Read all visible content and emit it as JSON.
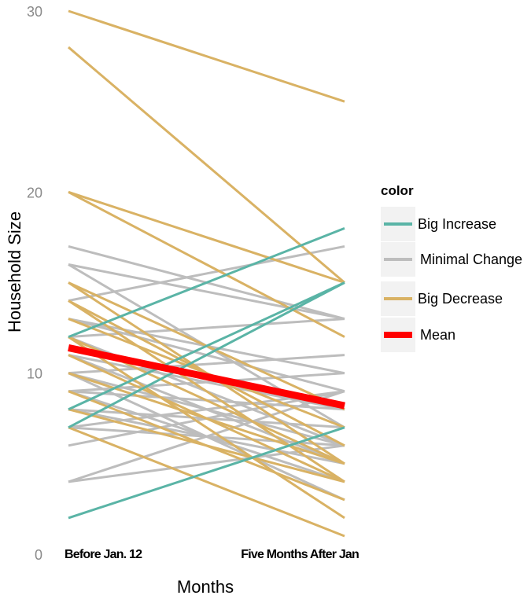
{
  "chart_data": {
    "type": "line",
    "title": "",
    "xlabel": "Months",
    "ylabel": "Household Size",
    "categories": [
      "Before Jan. 12",
      "Five Months After  Jan"
    ],
    "ylim": [
      0,
      30
    ],
    "yticks": [
      0,
      10,
      20,
      30
    ],
    "grid": false,
    "legend": {
      "title": "color",
      "position": "right",
      "entries": [
        {
          "label": "Big Increase",
          "color": "#5ab4a6"
        },
        {
          "label": "Minimal Change",
          "color": "#bdbdbd"
        },
        {
          "label": "Big Decrease",
          "color": "#d9b264"
        },
        {
          "label": "Mean",
          "color": "#ff0000"
        }
      ]
    },
    "series": [
      {
        "group": "Big Decrease",
        "values": [
          30,
          25
        ]
      },
      {
        "group": "Big Decrease",
        "values": [
          28,
          15
        ]
      },
      {
        "group": "Big Decrease",
        "values": [
          20,
          15
        ]
      },
      {
        "group": "Big Decrease",
        "values": [
          20,
          12
        ]
      },
      {
        "group": "Big Decrease",
        "values": [
          15,
          8
        ]
      },
      {
        "group": "Big Decrease",
        "values": [
          15,
          5
        ]
      },
      {
        "group": "Big Decrease",
        "values": [
          14,
          6
        ]
      },
      {
        "group": "Big Decrease",
        "values": [
          14,
          4
        ]
      },
      {
        "group": "Big Decrease",
        "values": [
          13,
          7
        ]
      },
      {
        "group": "Big Decrease",
        "values": [
          12,
          5
        ]
      },
      {
        "group": "Big Decrease",
        "values": [
          12,
          2
        ]
      },
      {
        "group": "Big Decrease",
        "values": [
          11,
          4
        ]
      },
      {
        "group": "Big Decrease",
        "values": [
          10,
          5
        ]
      },
      {
        "group": "Big Decrease",
        "values": [
          9,
          3
        ]
      },
      {
        "group": "Big Decrease",
        "values": [
          7,
          1
        ]
      },
      {
        "group": "Big Decrease",
        "values": [
          8,
          4
        ]
      },
      {
        "group": "Big Increase",
        "values": [
          12,
          18
        ]
      },
      {
        "group": "Big Increase",
        "values": [
          8,
          15
        ]
      },
      {
        "group": "Big Increase",
        "values": [
          7,
          15
        ]
      },
      {
        "group": "Big Increase",
        "values": [
          2,
          7
        ]
      },
      {
        "group": "Minimal Change",
        "values": [
          17,
          13
        ]
      },
      {
        "group": "Minimal Change",
        "values": [
          16,
          13
        ]
      },
      {
        "group": "Minimal Change",
        "values": [
          16,
          7
        ]
      },
      {
        "group": "Minimal Change",
        "values": [
          14,
          17
        ]
      },
      {
        "group": "Minimal Change",
        "values": [
          13,
          10
        ]
      },
      {
        "group": "Minimal Change",
        "values": [
          13,
          9
        ]
      },
      {
        "group": "Minimal Change",
        "values": [
          12,
          13
        ]
      },
      {
        "group": "Minimal Change",
        "values": [
          12,
          6
        ]
      },
      {
        "group": "Minimal Change",
        "values": [
          11,
          8
        ]
      },
      {
        "group": "Minimal Change",
        "values": [
          11,
          5
        ]
      },
      {
        "group": "Minimal Change",
        "values": [
          10,
          11
        ]
      },
      {
        "group": "Minimal Change",
        "values": [
          10,
          6
        ]
      },
      {
        "group": "Minimal Change",
        "values": [
          9,
          10
        ]
      },
      {
        "group": "Minimal Change",
        "values": [
          9,
          8
        ]
      },
      {
        "group": "Minimal Change",
        "values": [
          9,
          4
        ]
      },
      {
        "group": "Minimal Change",
        "values": [
          8,
          7
        ]
      },
      {
        "group": "Minimal Change",
        "values": [
          8,
          5
        ]
      },
      {
        "group": "Minimal Change",
        "values": [
          7,
          6
        ]
      },
      {
        "group": "Minimal Change",
        "values": [
          7,
          9
        ]
      },
      {
        "group": "Minimal Change",
        "values": [
          6,
          9
        ]
      },
      {
        "group": "Minimal Change",
        "values": [
          4,
          9
        ]
      },
      {
        "group": "Minimal Change",
        "values": [
          4,
          6
        ]
      },
      {
        "group": "Minimal Change",
        "values": [
          10,
          3
        ]
      },
      {
        "group": "Mean",
        "values": [
          11.4,
          8.2
        ]
      }
    ]
  }
}
